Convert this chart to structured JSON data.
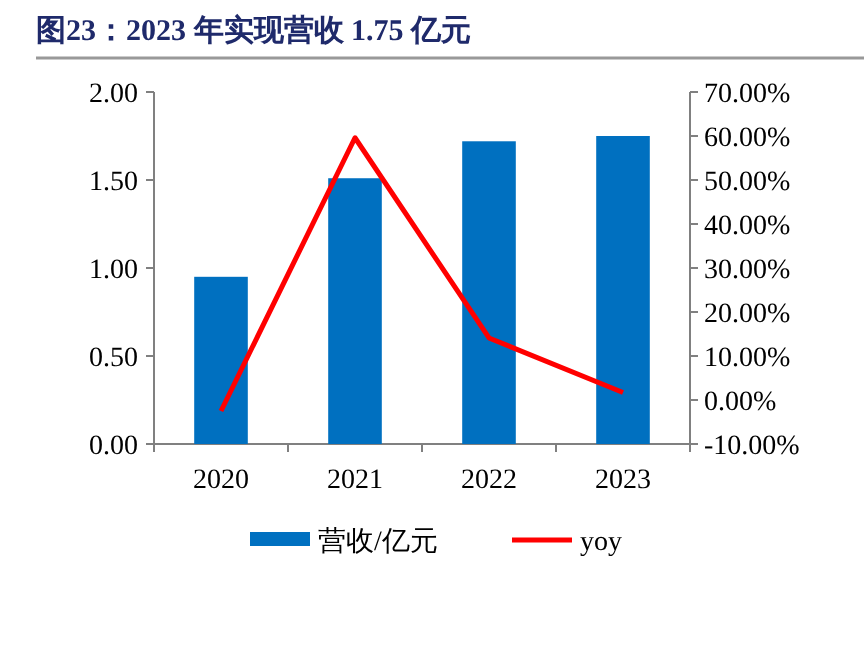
{
  "chart_data": {
    "type": "bar",
    "title": "图23：2023 年实现营收 1.75 亿元",
    "categories": [
      "2020",
      "2021",
      "2022",
      "2023"
    ],
    "series": [
      {
        "name": "营收/亿元",
        "color": "#0070c0",
        "values": [
          0.95,
          1.51,
          1.72,
          1.75
        ]
      },
      {
        "name": "yoy",
        "type": "line",
        "axis": "y2",
        "color": "#ff0000",
        "values": [
          -2.5,
          59.6,
          14.1,
          1.7
        ]
      }
    ],
    "ylim": [
      0,
      2
    ],
    "yticks": [
      {
        "value": 0,
        "label": "0.00"
      },
      {
        "value": 0.5,
        "label": "0.50"
      },
      {
        "value": 1,
        "label": "1.00"
      },
      {
        "value": 1.5,
        "label": "1.50"
      },
      {
        "value": 2,
        "label": "2.00"
      }
    ],
    "y2lim": [
      -10,
      70
    ],
    "y2ticks": [
      {
        "value": -10,
        "label": "-10.00%"
      },
      {
        "value": 0,
        "label": "0.00%"
      },
      {
        "value": 10,
        "label": "10.00%"
      },
      {
        "value": 20,
        "label": "20.00%"
      },
      {
        "value": 30,
        "label": "30.00%"
      },
      {
        "value": 40,
        "label": "40.00%"
      },
      {
        "value": 50,
        "label": "50.00%"
      },
      {
        "value": 60,
        "label": "60.00%"
      },
      {
        "value": 70,
        "label": "70.00%"
      }
    ],
    "legend": "bottom",
    "marker": "none",
    "line_style": "solid",
    "grid": false
  }
}
